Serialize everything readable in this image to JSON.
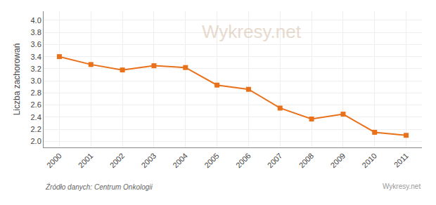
{
  "chart_data": {
    "type": "line",
    "x": [
      2000,
      2001,
      2002,
      2003,
      2004,
      2005,
      2006,
      2007,
      2008,
      2009,
      2010,
      2011
    ],
    "values": [
      3.4,
      3.27,
      3.18,
      3.25,
      3.22,
      2.93,
      2.86,
      2.55,
      2.37,
      2.45,
      2.15,
      2.1
    ],
    "color": "#e8711a",
    "marker": "square",
    "ylabel": "Liczba zachorowań",
    "xlim": [
      1999.5,
      2011.5
    ],
    "xticks": [
      2000,
      2001,
      2002,
      2003,
      2004,
      2005,
      2006,
      2007,
      2008,
      2009,
      2010,
      2011
    ],
    "ylim": [
      1.9,
      4.15
    ],
    "yticks": [
      {
        "value": 2.0,
        "label": "2.0"
      },
      2.2,
      2.4,
      2.6,
      2.8,
      {
        "value": 3.0,
        "label": "3.0"
      },
      3.2,
      3.4,
      3.6,
      3.8,
      {
        "value": 4.0,
        "label": "4.0"
      }
    ],
    "grid": true,
    "annotations": [
      "Wykresy.net",
      "Źródło danych: Centrum Onkologii",
      "Wykresy.net"
    ]
  }
}
